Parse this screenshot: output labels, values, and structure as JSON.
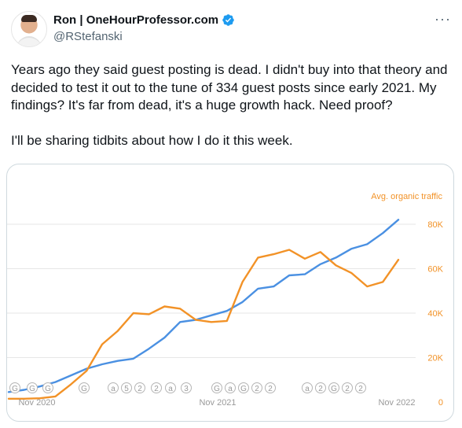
{
  "author": {
    "display_name": "Ron | OneHourProfessor.com",
    "handle": "@RStefanski",
    "verified": true
  },
  "icons": {
    "avatar": "profile-photo",
    "verified": "verified-badge-icon",
    "more": "more-options-icon"
  },
  "tweet": {
    "paragraph_1": "Years ago they said guest posting is dead. I didn't buy into that theory and decided to test it out to the tune of 334 guest posts since early 2021. My findings? It's far from dead, it's a huge growth hack.  Need proof?",
    "paragraph_2": "I'll be sharing tidbits about how I do it this week."
  },
  "colors": {
    "blue_series": "#4a90e2",
    "orange_series": "#f29227",
    "verified": "#1d9bf0"
  },
  "chart_data": {
    "type": "line",
    "right_axis_label": "Avg. organic traffic",
    "x_tick_labels": [
      "Nov 2020",
      "Nov 2021",
      "Nov 2022"
    ],
    "y_tick_labels": [
      "80K",
      "60K",
      "40K",
      "20K",
      "0"
    ],
    "ylim": [
      0,
      90000
    ],
    "grid": true,
    "annotation_markers": [
      "G",
      "G",
      "G",
      "G",
      "a",
      "5",
      "2",
      "2",
      "a",
      "3",
      "G",
      "a",
      "G",
      "2",
      "2",
      "a",
      "2",
      "G",
      "2",
      "2"
    ],
    "x": [
      0,
      1,
      2,
      3,
      4,
      5,
      6,
      7,
      8,
      9,
      10,
      11,
      12,
      13,
      14,
      15,
      16,
      17,
      18,
      19,
      20,
      21,
      22,
      23,
      24,
      25
    ],
    "series": [
      {
        "color": "#4a90e2",
        "values": [
          4500,
          5500,
          7000,
          9000,
          12000,
          15000,
          17000,
          18500,
          19500,
          24000,
          29000,
          36000,
          37000,
          39000,
          41000,
          45000,
          51000,
          52000,
          57000,
          57500,
          62000,
          65000,
          69000,
          71000,
          76000,
          82000
        ]
      },
      {
        "color": "#f29227",
        "values": [
          1500,
          1500,
          1700,
          2500,
          8000,
          14000,
          26000,
          32000,
          40000,
          39500,
          43000,
          42000,
          37000,
          36000,
          36500,
          54000,
          65000,
          66500,
          68500,
          64500,
          67500,
          61500,
          58000,
          52000,
          54000,
          64000
        ]
      }
    ]
  }
}
